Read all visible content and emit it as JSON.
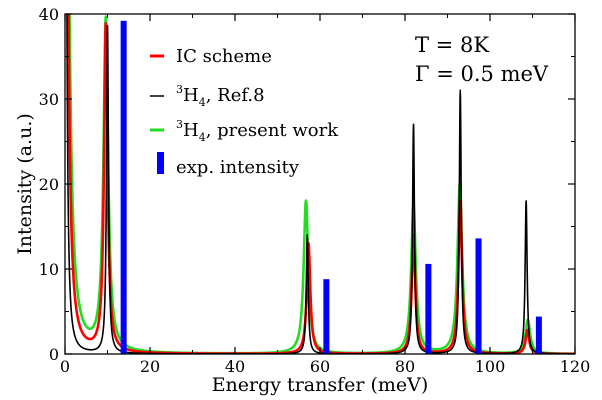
{
  "chart_data": {
    "type": "line",
    "xlabel": "Energy transfer (meV)",
    "ylabel": "Intensity (a.u.)",
    "xlim": [
      0,
      120
    ],
    "ylim": [
      0,
      40
    ],
    "xticks": [
      0,
      20,
      40,
      60,
      80,
      100,
      120
    ],
    "yticks": [
      0,
      10,
      20,
      30,
      40
    ],
    "grid": false,
    "legend_position": "top-center",
    "annotations": [
      "T = 8K",
      "Γ = 0.5 meV"
    ],
    "series": [
      {
        "name": "IC scheme",
        "color": "#ff0000",
        "kind": "lorentzian-line",
        "width": 1.0,
        "peaks": [
          [
            0,
            150
          ],
          [
            9.6,
            38.5
          ],
          [
            57.3,
            13.0
          ],
          [
            82.0,
            14.0
          ],
          [
            93.0,
            18.0
          ],
          [
            108.8,
            2.8
          ]
        ]
      },
      {
        "name": "³H₄, Ref.8",
        "legend_main": "H",
        "legend_sup": "3",
        "legend_sub": "4",
        "legend_rest": ", Ref.8",
        "color": "#000000",
        "kind": "lorentzian-line",
        "width": 0.55,
        "peaks": [
          [
            0,
            150
          ],
          [
            10.0,
            38.5
          ],
          [
            57.0,
            14.0
          ],
          [
            82.0,
            27.0
          ],
          [
            93.0,
            31.0
          ],
          [
            108.5,
            18.0
          ]
        ]
      },
      {
        "name": "³H₄, present work",
        "legend_main": "H",
        "legend_sup": "3",
        "legend_sub": "4",
        "legend_rest": ", present work",
        "color": "#22dd22",
        "kind": "lorentzian-line",
        "width": 1.3,
        "peaks": [
          [
            0,
            150
          ],
          [
            9.6,
            39.0
          ],
          [
            56.7,
            18.0
          ],
          [
            82.0,
            17.5
          ],
          [
            92.9,
            20.0
          ],
          [
            108.9,
            4.0
          ]
        ]
      },
      {
        "name": "exp. intensity",
        "color": "#0000ff",
        "kind": "bar",
        "x": [
          13.8,
          61.5,
          85.5,
          97.3,
          111.5
        ],
        "values": [
          39.2,
          8.8,
          10.6,
          13.6,
          4.4
        ]
      }
    ]
  }
}
